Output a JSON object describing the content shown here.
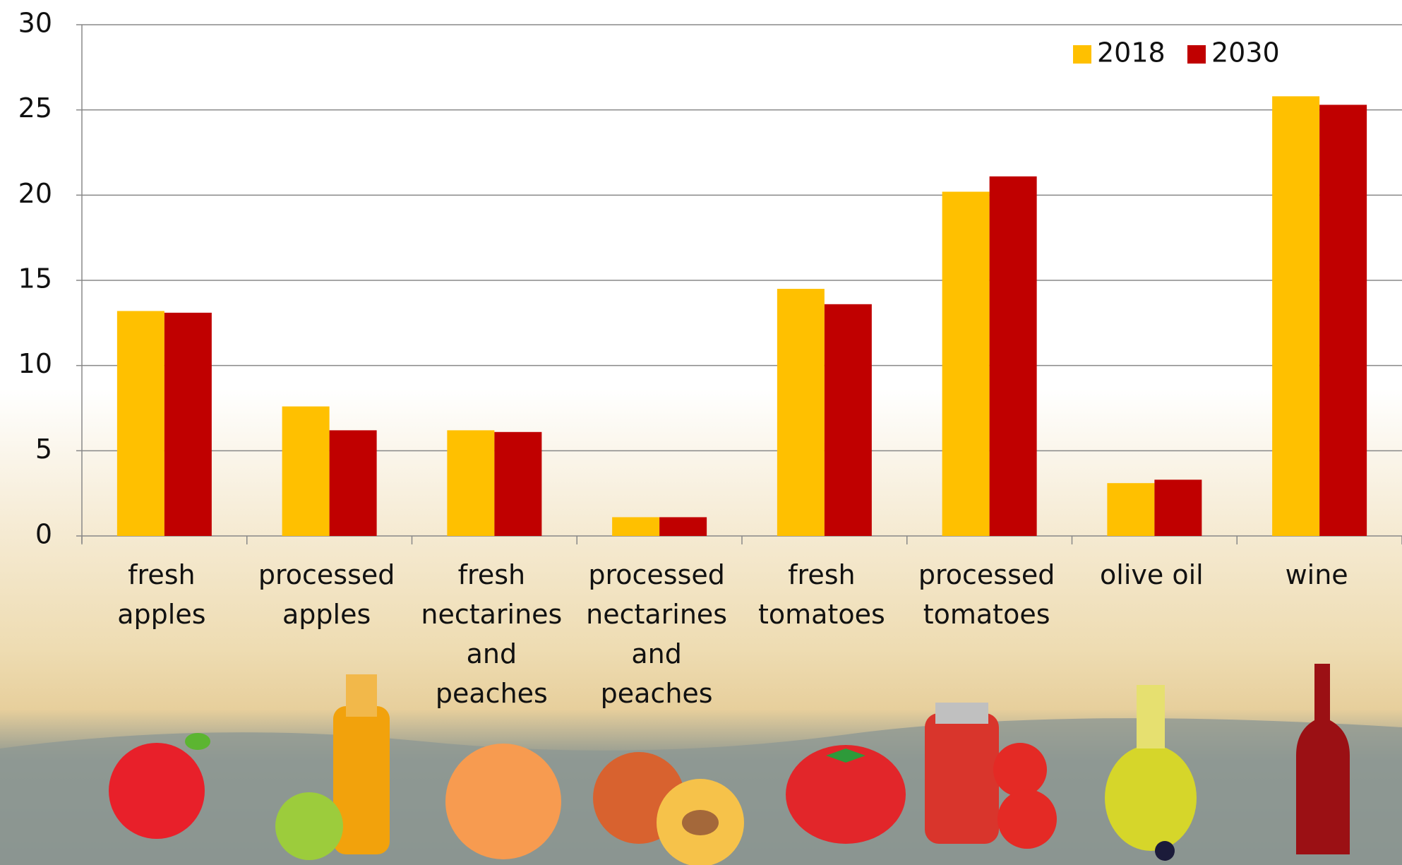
{
  "chart_data": {
    "type": "bar",
    "categories": [
      "fresh apples",
      "processed apples",
      "fresh nectarines and peaches",
      "processed nectarines and peaches",
      "fresh tomatoes",
      "processed tomatoes",
      "olive oil",
      "wine"
    ],
    "series": [
      {
        "name": "2018",
        "color": "#FFC000",
        "values": [
          13.2,
          7.6,
          6.2,
          1.1,
          14.5,
          20.2,
          3.1,
          25.8
        ]
      },
      {
        "name": "2030",
        "color": "#C00000",
        "values": [
          13.1,
          6.2,
          6.1,
          1.1,
          13.6,
          21.1,
          3.3,
          25.3
        ]
      }
    ],
    "ylim": [
      0,
      30
    ],
    "yticks": [
      0,
      5,
      10,
      15,
      20,
      25,
      30
    ],
    "grid": true,
    "legend": "upper right"
  }
}
